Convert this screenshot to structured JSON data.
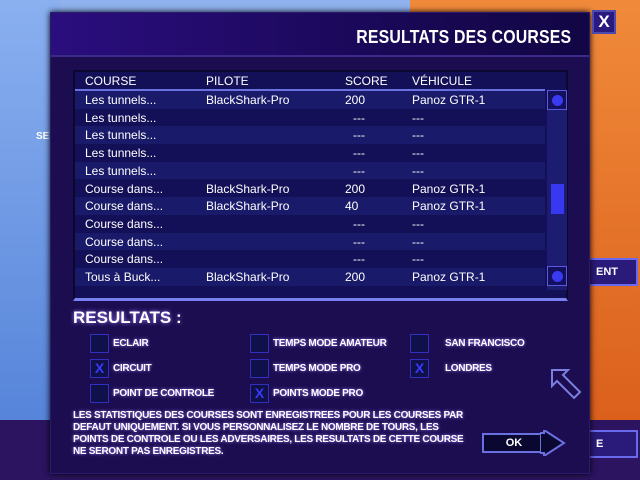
{
  "dialog": {
    "title": "RESULTATS DES COURSES",
    "close_label": "X"
  },
  "background": {
    "side_label": "SE",
    "right_button_label": "ENT",
    "right_button_label_2": "E"
  },
  "table": {
    "headers": [
      "COURSE",
      "PILOTE",
      "SCORE",
      "VÉHICULE"
    ],
    "rows": [
      [
        "Les tunnels...",
        "BlackShark-Pro",
        "200",
        "Panoz GTR-1"
      ],
      [
        "Les tunnels...",
        "",
        "---",
        "---"
      ],
      [
        "Les tunnels...",
        "",
        "---",
        "---"
      ],
      [
        "Les tunnels...",
        "",
        "---",
        "---"
      ],
      [
        "Les tunnels...",
        "",
        "---",
        "---"
      ],
      [
        "Course dans...",
        "BlackShark-Pro",
        "200",
        "Panoz GTR-1"
      ],
      [
        "Course dans...",
        "BlackShark-Pro",
        "40",
        "Panoz GTR-1"
      ],
      [
        "Course dans...",
        "",
        "---",
        "---"
      ],
      [
        "Course dans...",
        "",
        "---",
        "---"
      ],
      [
        "Course dans...",
        "",
        "---",
        "---"
      ],
      [
        "Tous à Buck...",
        "BlackShark-Pro",
        "200",
        "Panoz GTR-1"
      ]
    ]
  },
  "results": {
    "title": "RESULTATS :",
    "filters": [
      {
        "label": "ECLAIR",
        "checked": false,
        "mark": ""
      },
      {
        "label": "CIRCUIT",
        "checked": true,
        "mark": "X"
      },
      {
        "label": "POINT DE CONTROLE",
        "checked": false,
        "mark": ""
      },
      {
        "label": "TEMPS MODE AMATEUR",
        "checked": false,
        "mark": ""
      },
      {
        "label": "TEMPS MODE PRO",
        "checked": false,
        "mark": ""
      },
      {
        "label": "POINTS MODE PRO",
        "checked": true,
        "mark": "X"
      },
      {
        "label": "SAN FRANCISCO",
        "checked": false,
        "mark": ""
      },
      {
        "label": "LONDRES",
        "checked": true,
        "mark": "X"
      }
    ]
  },
  "note": "LES STATISTIQUES DES COURSES SONT ENREGISTREES POUR LES COURSES PAR DEFAUT UNIQUEMENT. SI VOUS PERSONNALISEZ LE NOMBRE DE TOURS, LES POINTS DE CONTROLE OU LES ADVERSAIRES, LES RESULTATS DE CETTE COURSE NE SERONT PAS ENREGISTRES.",
  "ok_label": "OK",
  "colors": {
    "panel": "#1c0c50",
    "accent": "#6a70e0",
    "check": "#3a3af8"
  }
}
